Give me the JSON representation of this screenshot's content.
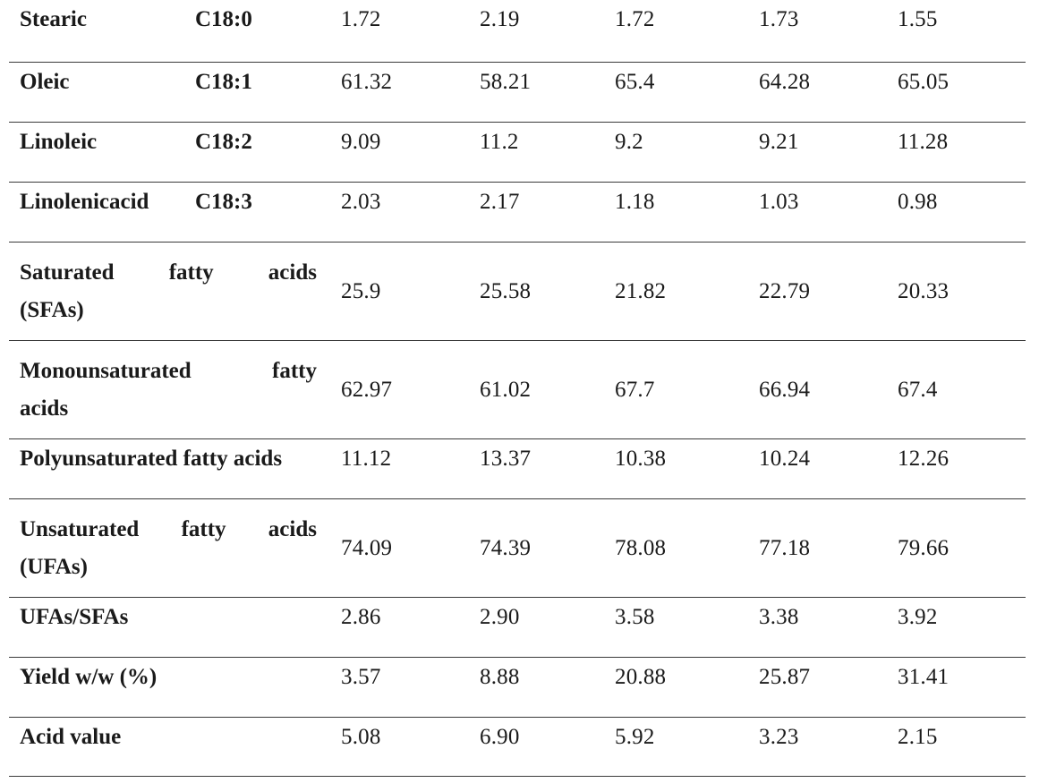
{
  "rows": [
    {
      "label_name": "Stearic",
      "label_code": "C18:0",
      "values": [
        "1.72",
        "2.19",
        "1.72",
        "1.73",
        "1.55"
      ]
    },
    {
      "label_name": "Oleic",
      "label_code": "C18:1",
      "values": [
        "61.32",
        "58.21",
        "65.4",
        "64.28",
        "65.05"
      ]
    },
    {
      "label_name": "Linoleic",
      "label_code": "C18:2",
      "values": [
        "9.09",
        "11.2",
        "9.2",
        "9.21",
        "11.28"
      ]
    },
    {
      "label_name": "Linolenicacid",
      "label_code": "C18:3",
      "values": [
        "2.03",
        "2.17",
        "1.18",
        "1.03",
        "0.98"
      ]
    },
    {
      "label_line1": [
        "Saturated",
        "fatty",
        "acids"
      ],
      "label_line2": "(SFAs)",
      "values": [
        "25.9",
        "25.58",
        "21.82",
        "22.79",
        "20.33"
      ]
    },
    {
      "label_line1": [
        "Monounsaturated",
        "fatty"
      ],
      "label_line2": "acids",
      "values": [
        "62.97",
        "61.02",
        "67.7",
        "66.94",
        "67.4"
      ]
    },
    {
      "label": "Polyunsaturated fatty acids",
      "values": [
        "11.12",
        "13.37",
        "10.38",
        "10.24",
        "12.26"
      ]
    },
    {
      "label_line1": [
        "Unsaturated",
        "fatty",
        "acids"
      ],
      "label_line2": "(UFAs)",
      "values": [
        "74.09",
        "74.39",
        "78.08",
        "77.18",
        "79.66"
      ]
    },
    {
      "label": "UFAs/SFAs",
      "values": [
        "2.86",
        "2.90",
        "3.58",
        "3.38",
        "3.92"
      ]
    },
    {
      "label": "Yield w/w (%)",
      "values": [
        "3.57",
        "8.88",
        "20.88",
        "25.87",
        "31.41"
      ]
    },
    {
      "label": "Acid value",
      "values": [
        "5.08",
        "6.90",
        "5.92",
        "3.23",
        "2.15"
      ]
    }
  ]
}
